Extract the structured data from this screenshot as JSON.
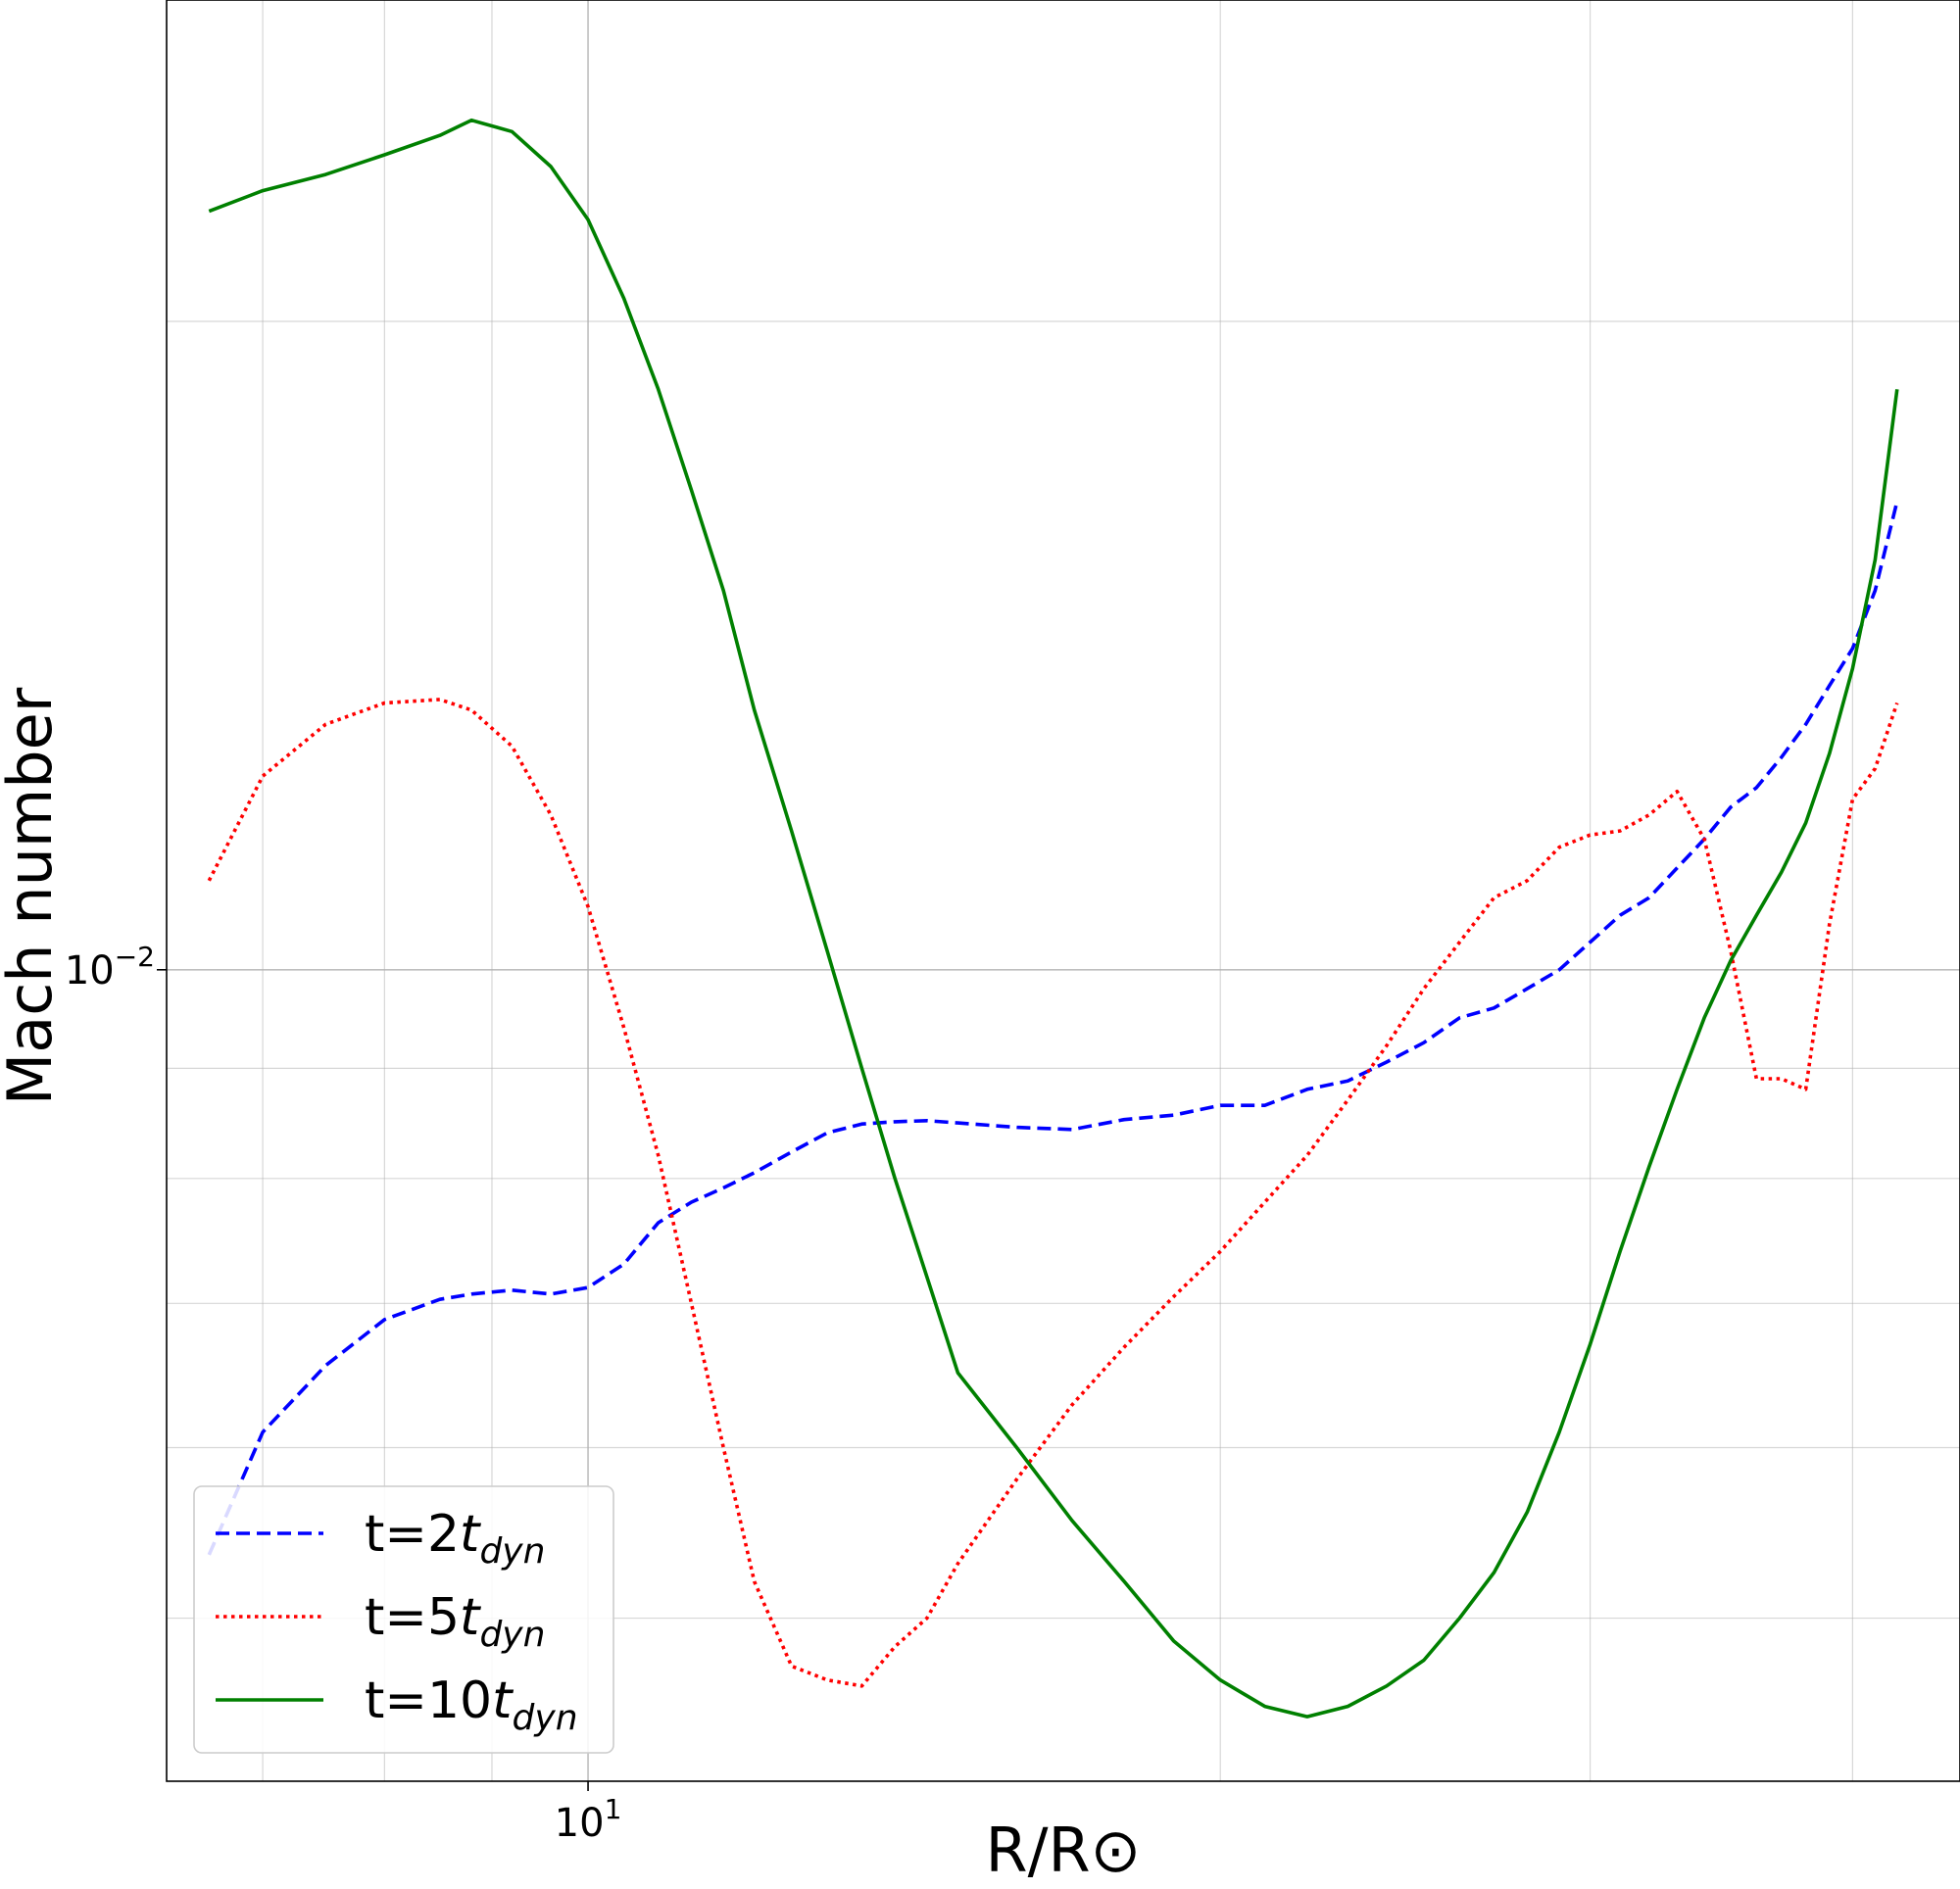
{
  "chart_data": {
    "type": "line",
    "xlabel": "R/R⊙",
    "ylabel": "Mach number",
    "xscale": "log",
    "yscale": "log",
    "xlim": [
      6.3,
      45
    ],
    "ylim": [
      0.0042,
      0.0282
    ],
    "x_tick_labels": [
      {
        "value": 10,
        "base": "10",
        "exp": "1"
      }
    ],
    "y_tick_labels": [
      {
        "value": 0.01,
        "base": "10",
        "exp": "−2"
      }
    ],
    "grid": true,
    "legend": {
      "position": "lower-left"
    },
    "series": [
      {
        "name": "t=2t_dyn",
        "label_main": "t=2",
        "label_sub": "dyn",
        "color": "#0000ff",
        "style": "dashed",
        "x": [
          6.6,
          7.0,
          7.5,
          8.0,
          8.5,
          8.8,
          9.2,
          9.6,
          10.0,
          10.4,
          10.8,
          11.2,
          11.6,
          12.0,
          12.5,
          13.0,
          13.5,
          14.0,
          14.5,
          15.0,
          16.0,
          17.0,
          18.0,
          19.0,
          20.0,
          21.0,
          22.0,
          23.0,
          24.0,
          25.0,
          26.0,
          27.0,
          28.0,
          29.0,
          30.0,
          31.0,
          32.0,
          33.0,
          34.0,
          35.0,
          36.0,
          37.0,
          38.0,
          39.0,
          40.0,
          41.0,
          42.0
        ],
        "y": [
          0.00535,
          0.0061,
          0.00655,
          0.00688,
          0.00703,
          0.00707,
          0.0071,
          0.00707,
          0.00712,
          0.0073,
          0.00763,
          0.0078,
          0.00792,
          0.00805,
          0.00823,
          0.0084,
          0.00848,
          0.0085,
          0.00851,
          0.00849,
          0.00845,
          0.00843,
          0.00852,
          0.00856,
          0.00865,
          0.00865,
          0.0088,
          0.00888,
          0.00906,
          0.00925,
          0.0095,
          0.0096,
          0.0098,
          0.01,
          0.0103,
          0.0106,
          0.0108,
          0.01115,
          0.0115,
          0.0119,
          0.01215,
          0.01255,
          0.013,
          0.01355,
          0.0141,
          0.015,
          0.0165
        ]
      },
      {
        "name": "t=5t_dyn",
        "label_main": "t=5",
        "label_sub": "dyn",
        "color": "#ff0000",
        "style": "dotted",
        "x": [
          6.6,
          7.0,
          7.5,
          8.0,
          8.5,
          8.8,
          9.2,
          9.6,
          10.0,
          10.4,
          10.8,
          11.2,
          11.6,
          12.0,
          12.5,
          13.0,
          13.5,
          14.0,
          14.5,
          15.0,
          16.0,
          17.0,
          18.0,
          19.0,
          20.0,
          21.0,
          22.0,
          23.0,
          24.0,
          25.0,
          26.0,
          27.0,
          28.0,
          29.0,
          30.0,
          31.0,
          32.0,
          33.0,
          34.0,
          35.0,
          36.0,
          37.0,
          38.0,
          39.0,
          40.0,
          41.0,
          42.0
        ],
        "y": [
          0.011,
          0.0123,
          0.013,
          0.0133,
          0.01335,
          0.0132,
          0.0127,
          0.0118,
          0.0107,
          0.0094,
          0.0082,
          0.007,
          0.006,
          0.0052,
          0.00475,
          0.00468,
          0.00465,
          0.00485,
          0.005,
          0.0053,
          0.0058,
          0.00628,
          0.00668,
          0.00705,
          0.0074,
          0.0078,
          0.0082,
          0.0087,
          0.00922,
          0.0098,
          0.0103,
          0.0108,
          0.011,
          0.0114,
          0.01155,
          0.0116,
          0.0118,
          0.0121,
          0.0115,
          0.0102,
          0.0089,
          0.0089,
          0.0088,
          0.0105,
          0.012,
          0.0124,
          0.0133
        ]
      },
      {
        "name": "t=10t_dyn",
        "label_main": "t=10",
        "label_sub": "dyn",
        "color": "#008000",
        "style": "solid",
        "x": [
          6.6,
          7.0,
          7.5,
          8.0,
          8.5,
          8.8,
          9.2,
          9.6,
          10.0,
          10.4,
          10.8,
          11.2,
          11.6,
          12.0,
          12.5,
          13.0,
          13.5,
          14.0,
          14.5,
          15.0,
          16.0,
          17.0,
          18.0,
          19.0,
          20.0,
          21.0,
          22.0,
          23.0,
          24.0,
          25.0,
          26.0,
          27.0,
          28.0,
          29.0,
          30.0,
          31.0,
          32.0,
          33.0,
          34.0,
          35.0,
          36.0,
          37.0,
          38.0,
          39.0,
          40.0,
          41.0,
          42.0
        ],
        "y": [
          0.0225,
          0.023,
          0.0234,
          0.0239,
          0.0244,
          0.0248,
          0.0245,
          0.0236,
          0.0223,
          0.0205,
          0.0186,
          0.0167,
          0.015,
          0.0132,
          0.0116,
          0.0102,
          0.009,
          0.008,
          0.0072,
          0.0065,
          0.006,
          0.00555,
          0.0052,
          0.00488,
          0.00468,
          0.00455,
          0.0045,
          0.00455,
          0.00465,
          0.00478,
          0.005,
          0.00525,
          0.0056,
          0.0061,
          0.0067,
          0.0074,
          0.0081,
          0.0088,
          0.0095,
          0.0101,
          0.0106,
          0.0111,
          0.0117,
          0.0126,
          0.0138,
          0.0155,
          0.0186
        ]
      }
    ]
  }
}
